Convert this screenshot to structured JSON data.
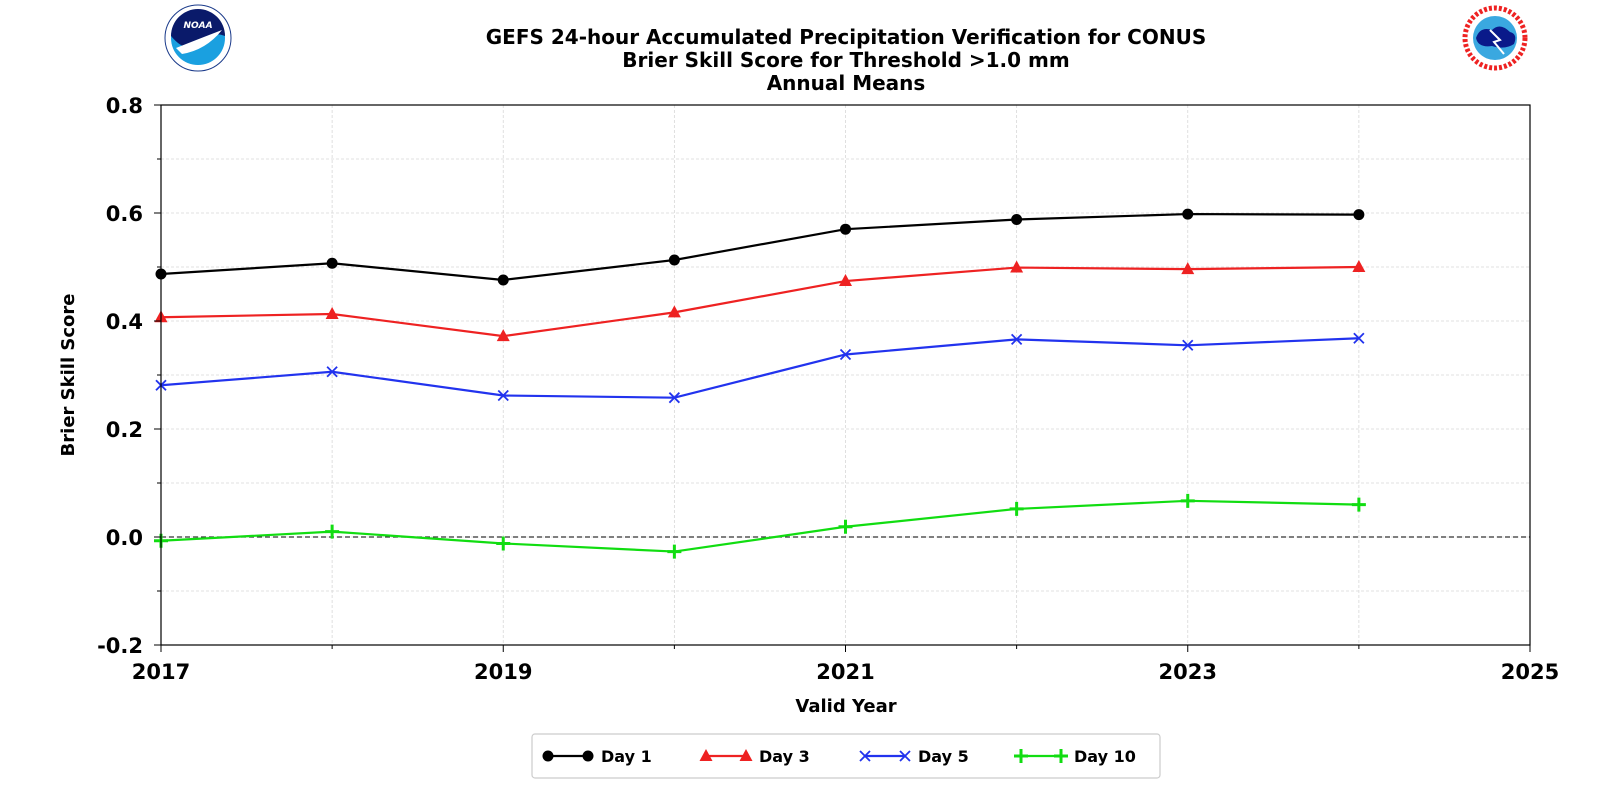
{
  "chart_data": {
    "type": "line",
    "title": [
      "GEFS 24-hour Accumulated Precipitation Verification for CONUS",
      "Brier Skill Score for Threshold >1.0 mm",
      "Annual Means"
    ],
    "xlabel": "Valid Year",
    "ylabel": "Brier Skill Score",
    "xlim": [
      2017,
      2025
    ],
    "ylim": [
      -0.2,
      0.8
    ],
    "x_ticks": [
      "2017",
      "2019",
      "2021",
      "2023",
      "2025"
    ],
    "y_ticks": [
      "0.8",
      "0.6",
      "0.4",
      "0.2",
      "0.0",
      "-0.2"
    ],
    "x": [
      2017,
      2018,
      2019,
      2020,
      2021,
      2022,
      2023,
      2024
    ],
    "grid": true,
    "reference_line": 0.0,
    "legend_position": "bottom-center",
    "series": [
      {
        "name": "Day 1",
        "color": "#000000",
        "marker": "circle",
        "values": [
          0.487,
          0.507,
          0.476,
          0.513,
          0.57,
          0.588,
          0.598,
          0.597
        ]
      },
      {
        "name": "Day 3",
        "color": "#ee2222",
        "marker": "triangle",
        "values": [
          0.407,
          0.413,
          0.372,
          0.416,
          0.474,
          0.499,
          0.496,
          0.5
        ]
      },
      {
        "name": "Day 5",
        "color": "#2233ee",
        "marker": "x",
        "values": [
          0.281,
          0.306,
          0.262,
          0.258,
          0.338,
          0.366,
          0.355,
          0.368
        ]
      },
      {
        "name": "Day 10",
        "color": "#11dd11",
        "marker": "plus",
        "values": [
          -0.007,
          0.01,
          -0.012,
          -0.027,
          0.019,
          0.052,
          0.067,
          0.06
        ]
      }
    ]
  },
  "logos": {
    "left": {
      "name": "NOAA",
      "text": "NOAA",
      "color": "#0099dd"
    },
    "right": {
      "name": "National Weather Service",
      "text": "NATIONAL WEATHER SERVICE",
      "color": "#ee2222"
    }
  }
}
